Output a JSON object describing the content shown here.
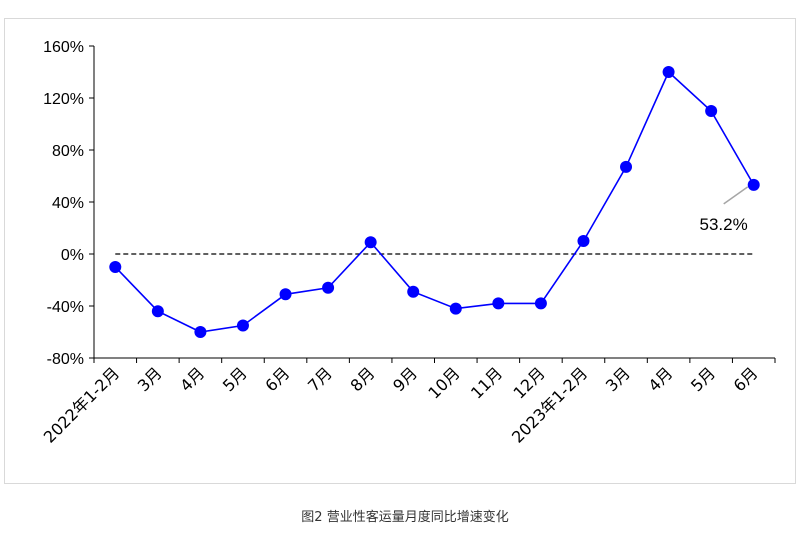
{
  "caption": "图2 营业性客运量月度同比增速变化",
  "chart_data": {
    "type": "line",
    "categories": [
      "2022年1-2月",
      "3月",
      "4月",
      "5月",
      "6月",
      "7月",
      "8月",
      "9月",
      "10月",
      "11月",
      "12月",
      "2023年1-2月",
      "3月",
      "4月",
      "5月",
      "6月"
    ],
    "series": [
      {
        "values": [
          -10,
          -44,
          -60,
          -55,
          -31,
          -26,
          9,
          -29,
          -42,
          -38,
          -38,
          10,
          67,
          140,
          110,
          53.2
        ]
      }
    ],
    "yticks": [
      "160%",
      "120%",
      "80%",
      "40%",
      "0%",
      "-40%",
      "-80%"
    ],
    "ylim": [
      -80,
      160
    ],
    "reference_line": 0,
    "annotation": {
      "text": "53.2%",
      "point_index": 15
    },
    "color": "#0000ff",
    "grid": false
  }
}
